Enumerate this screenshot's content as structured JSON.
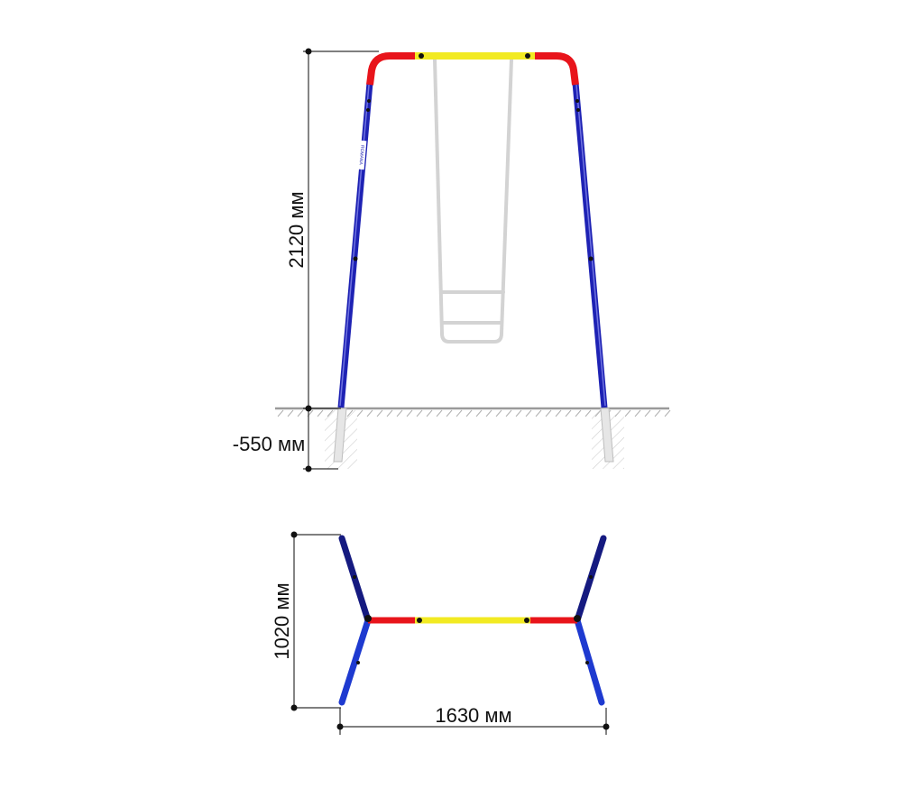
{
  "front_view": {
    "height_label": "2120 мм",
    "depth_label": "-550 мм",
    "brand_label": "ROMANA"
  },
  "top_view": {
    "width_label": "1020 мм",
    "length_label": "1630 мм"
  },
  "colors": {
    "frame_top": "#e8141b",
    "crossbar": "#f2ea22",
    "legs": "#1e22b4",
    "legs_dark": "#151a80",
    "seat": "#d3d3d3",
    "ground": "#9a9a9a",
    "dimension_line": "#333333"
  }
}
